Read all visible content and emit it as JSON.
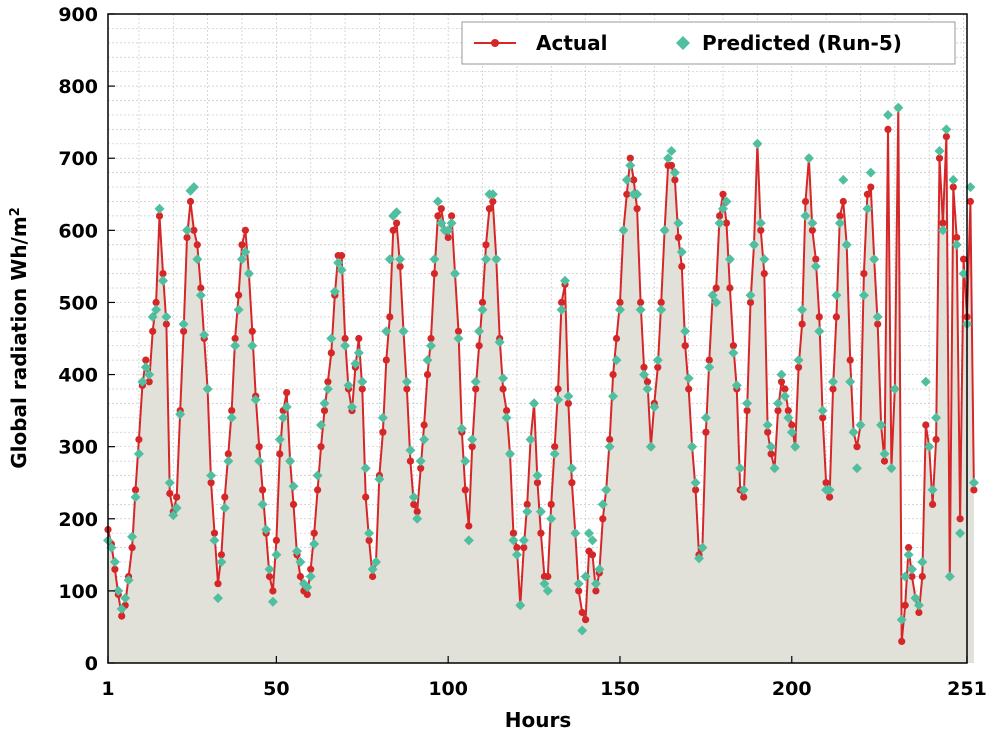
{
  "chart_data": {
    "type": "line",
    "xlabel": "Hours",
    "ylabel": "Global radiation Wh/m",
    "ylabel_superscript": "2",
    "xlim": [
      1,
      251
    ],
    "ylim": [
      0,
      900
    ],
    "x_ticks": [
      1,
      50,
      100,
      150,
      200,
      251
    ],
    "y_ticks": [
      0,
      100,
      200,
      300,
      400,
      500,
      600,
      700,
      800,
      900
    ],
    "grid": true,
    "legend_position": "top-right",
    "series": [
      {
        "name": "Actual",
        "color": "#d62728",
        "marker": "circle",
        "values": [
          185,
          165,
          130,
          95,
          65,
          80,
          120,
          160,
          240,
          310,
          385,
          420,
          390,
          460,
          500,
          620,
          540,
          470,
          235,
          210,
          230,
          350,
          460,
          590,
          640,
          600,
          580,
          520,
          450,
          380,
          250,
          180,
          110,
          150,
          230,
          290,
          350,
          450,
          510,
          580,
          600,
          540,
          460,
          370,
          300,
          240,
          180,
          120,
          100,
          170,
          290,
          350,
          375,
          280,
          220,
          150,
          120,
          100,
          95,
          130,
          180,
          240,
          300,
          350,
          390,
          430,
          510,
          565,
          565,
          450,
          380,
          350,
          410,
          450,
          380,
          230,
          170,
          120,
          140,
          260,
          320,
          420,
          480,
          600,
          610,
          550,
          460,
          380,
          280,
          220,
          210,
          270,
          330,
          400,
          450,
          540,
          620,
          630,
          600,
          590,
          620,
          540,
          460,
          320,
          240,
          190,
          300,
          380,
          440,
          500,
          580,
          630,
          640,
          560,
          450,
          380,
          350,
          290,
          180,
          160,
          80,
          160,
          220,
          310,
          360,
          250,
          180,
          120,
          120,
          220,
          300,
          380,
          500,
          525,
          360,
          250,
          180,
          100,
          70,
          60,
          155,
          150,
          100,
          125,
          200,
          240,
          310,
          400,
          450,
          500,
          600,
          650,
          700,
          670,
          630,
          500,
          410,
          390,
          300,
          360,
          410,
          500,
          600,
          690,
          690,
          670,
          590,
          550,
          440,
          380,
          300,
          240,
          150,
          160,
          320,
          420,
          510,
          520,
          620,
          650,
          610,
          520,
          440,
          380,
          240,
          230,
          350,
          500,
          580,
          720,
          600,
          540,
          320,
          290,
          270,
          350,
          390,
          380,
          350,
          330,
          300,
          410,
          470,
          640,
          700,
          600,
          560,
          480,
          340,
          250,
          230,
          380,
          480,
          620,
          640,
          580,
          420,
          320,
          300,
          330,
          540,
          650,
          660,
          560,
          470,
          330,
          280,
          740,
          270,
          380,
          770,
          30,
          80,
          160,
          120,
          90,
          70,
          120,
          330,
          300,
          220,
          310,
          700,
          610,
          730,
          120,
          660,
          590,
          200,
          560,
          480,
          640,
          240
        ],
        "_comment": "values indexed by hour 1..251"
      },
      {
        "name": "Predicted (Run-5)",
        "color": "#4fbf9f",
        "marker": "diamond",
        "values": [
          170,
          160,
          140,
          100,
          75,
          90,
          115,
          175,
          230,
          290,
          390,
          410,
          400,
          480,
          490,
          630,
          530,
          480,
          250,
          205,
          215,
          345,
          470,
          600,
          655,
          660,
          560,
          510,
          455,
          380,
          260,
          170,
          90,
          140,
          215,
          280,
          340,
          440,
          490,
          560,
          570,
          540,
          440,
          365,
          280,
          220,
          185,
          130,
          85,
          150,
          310,
          340,
          355,
          280,
          245,
          155,
          140,
          110,
          105,
          120,
          165,
          260,
          330,
          360,
          380,
          450,
          515,
          555,
          545,
          440,
          385,
          355,
          415,
          430,
          390,
          270,
          180,
          130,
          140,
          255,
          340,
          460,
          560,
          620,
          625,
          560,
          460,
          390,
          295,
          230,
          200,
          280,
          310,
          420,
          440,
          560,
          640,
          610,
          600,
          600,
          610,
          540,
          450,
          325,
          280,
          170,
          310,
          390,
          460,
          490,
          560,
          650,
          650,
          560,
          445,
          395,
          340,
          290,
          170,
          150,
          80,
          170,
          210,
          310,
          360,
          260,
          210,
          110,
          100,
          200,
          290,
          365,
          490,
          530,
          370,
          270,
          180,
          110,
          45,
          120,
          180,
          170,
          110,
          130,
          220,
          240,
          300,
          370,
          420,
          490,
          600,
          670,
          690,
          650,
          650,
          490,
          400,
          380,
          300,
          355,
          420,
          490,
          600,
          700,
          710,
          680,
          610,
          570,
          460,
          395,
          300,
          250,
          145,
          160,
          340,
          410,
          510,
          500,
          610,
          630,
          640,
          560,
          430,
          385,
          270,
          240,
          360,
          510,
          580,
          720,
          610,
          560,
          330,
          300,
          270,
          360,
          400,
          370,
          340,
          320,
          300,
          420,
          490,
          620,
          700,
          610,
          550,
          460,
          350,
          240,
          240,
          390,
          510,
          610,
          670,
          580,
          390,
          320,
          270,
          330,
          510,
          630,
          680,
          560,
          480,
          330,
          290,
          760,
          270,
          380,
          770,
          60,
          120,
          150,
          130,
          90,
          80,
          140,
          390,
          300,
          240,
          340,
          710,
          600,
          740,
          120,
          670,
          580,
          180,
          540,
          470,
          660,
          250
        ]
      }
    ]
  }
}
